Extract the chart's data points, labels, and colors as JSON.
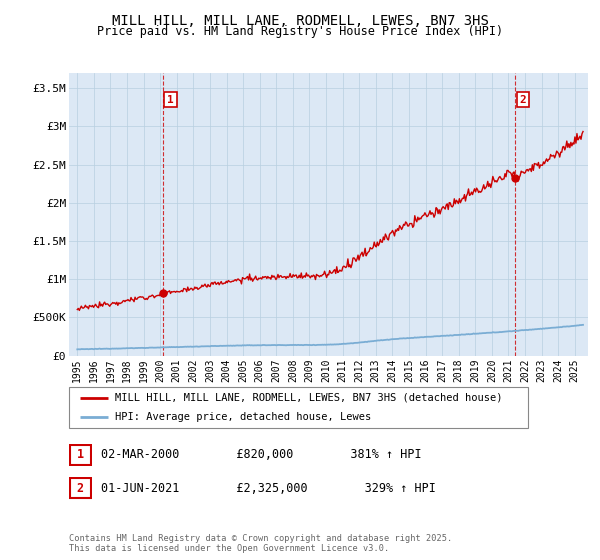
{
  "title": "MILL HILL, MILL LANE, RODMELL, LEWES, BN7 3HS",
  "subtitle": "Price paid vs. HM Land Registry's House Price Index (HPI)",
  "title_fontsize": 10,
  "subtitle_fontsize": 8.5,
  "background_color": "#ffffff",
  "plot_bg_color": "#dce8f5",
  "grid_color": "#b8cfe0",
  "sale1_date_num": 2000.17,
  "sale1_price": 820000,
  "sale2_date_num": 2021.42,
  "sale2_price": 2325000,
  "house_line_color": "#cc0000",
  "hpi_line_color": "#7aadd4",
  "ylim": [
    0,
    3700000
  ],
  "yticks": [
    0,
    500000,
    1000000,
    1500000,
    2000000,
    2500000,
    3000000,
    3500000
  ],
  "ytick_labels": [
    "£0",
    "£500K",
    "£1M",
    "£1.5M",
    "£2M",
    "£2.5M",
    "£3M",
    "£3.5M"
  ],
  "xlim_start": 1994.5,
  "xlim_end": 2025.8,
  "xtick_years": [
    1995,
    1996,
    1997,
    1998,
    1999,
    2000,
    2001,
    2002,
    2003,
    2004,
    2005,
    2006,
    2007,
    2008,
    2009,
    2010,
    2011,
    2012,
    2013,
    2014,
    2015,
    2016,
    2017,
    2018,
    2019,
    2020,
    2021,
    2022,
    2023,
    2024,
    2025
  ],
  "legend_label_house": "MILL HILL, MILL LANE, RODMELL, LEWES, BN7 3HS (detached house)",
  "legend_label_hpi": "HPI: Average price, detached house, Lewes",
  "table_row1": [
    "1",
    "02-MAR-2000",
    "£820,000",
    "381% ↑ HPI"
  ],
  "table_row2": [
    "2",
    "01-JUN-2021",
    "£2,325,000",
    "329% ↑ HPI"
  ],
  "footnote": "Contains HM Land Registry data © Crown copyright and database right 2025.\nThis data is licensed under the Open Government Licence v3.0."
}
